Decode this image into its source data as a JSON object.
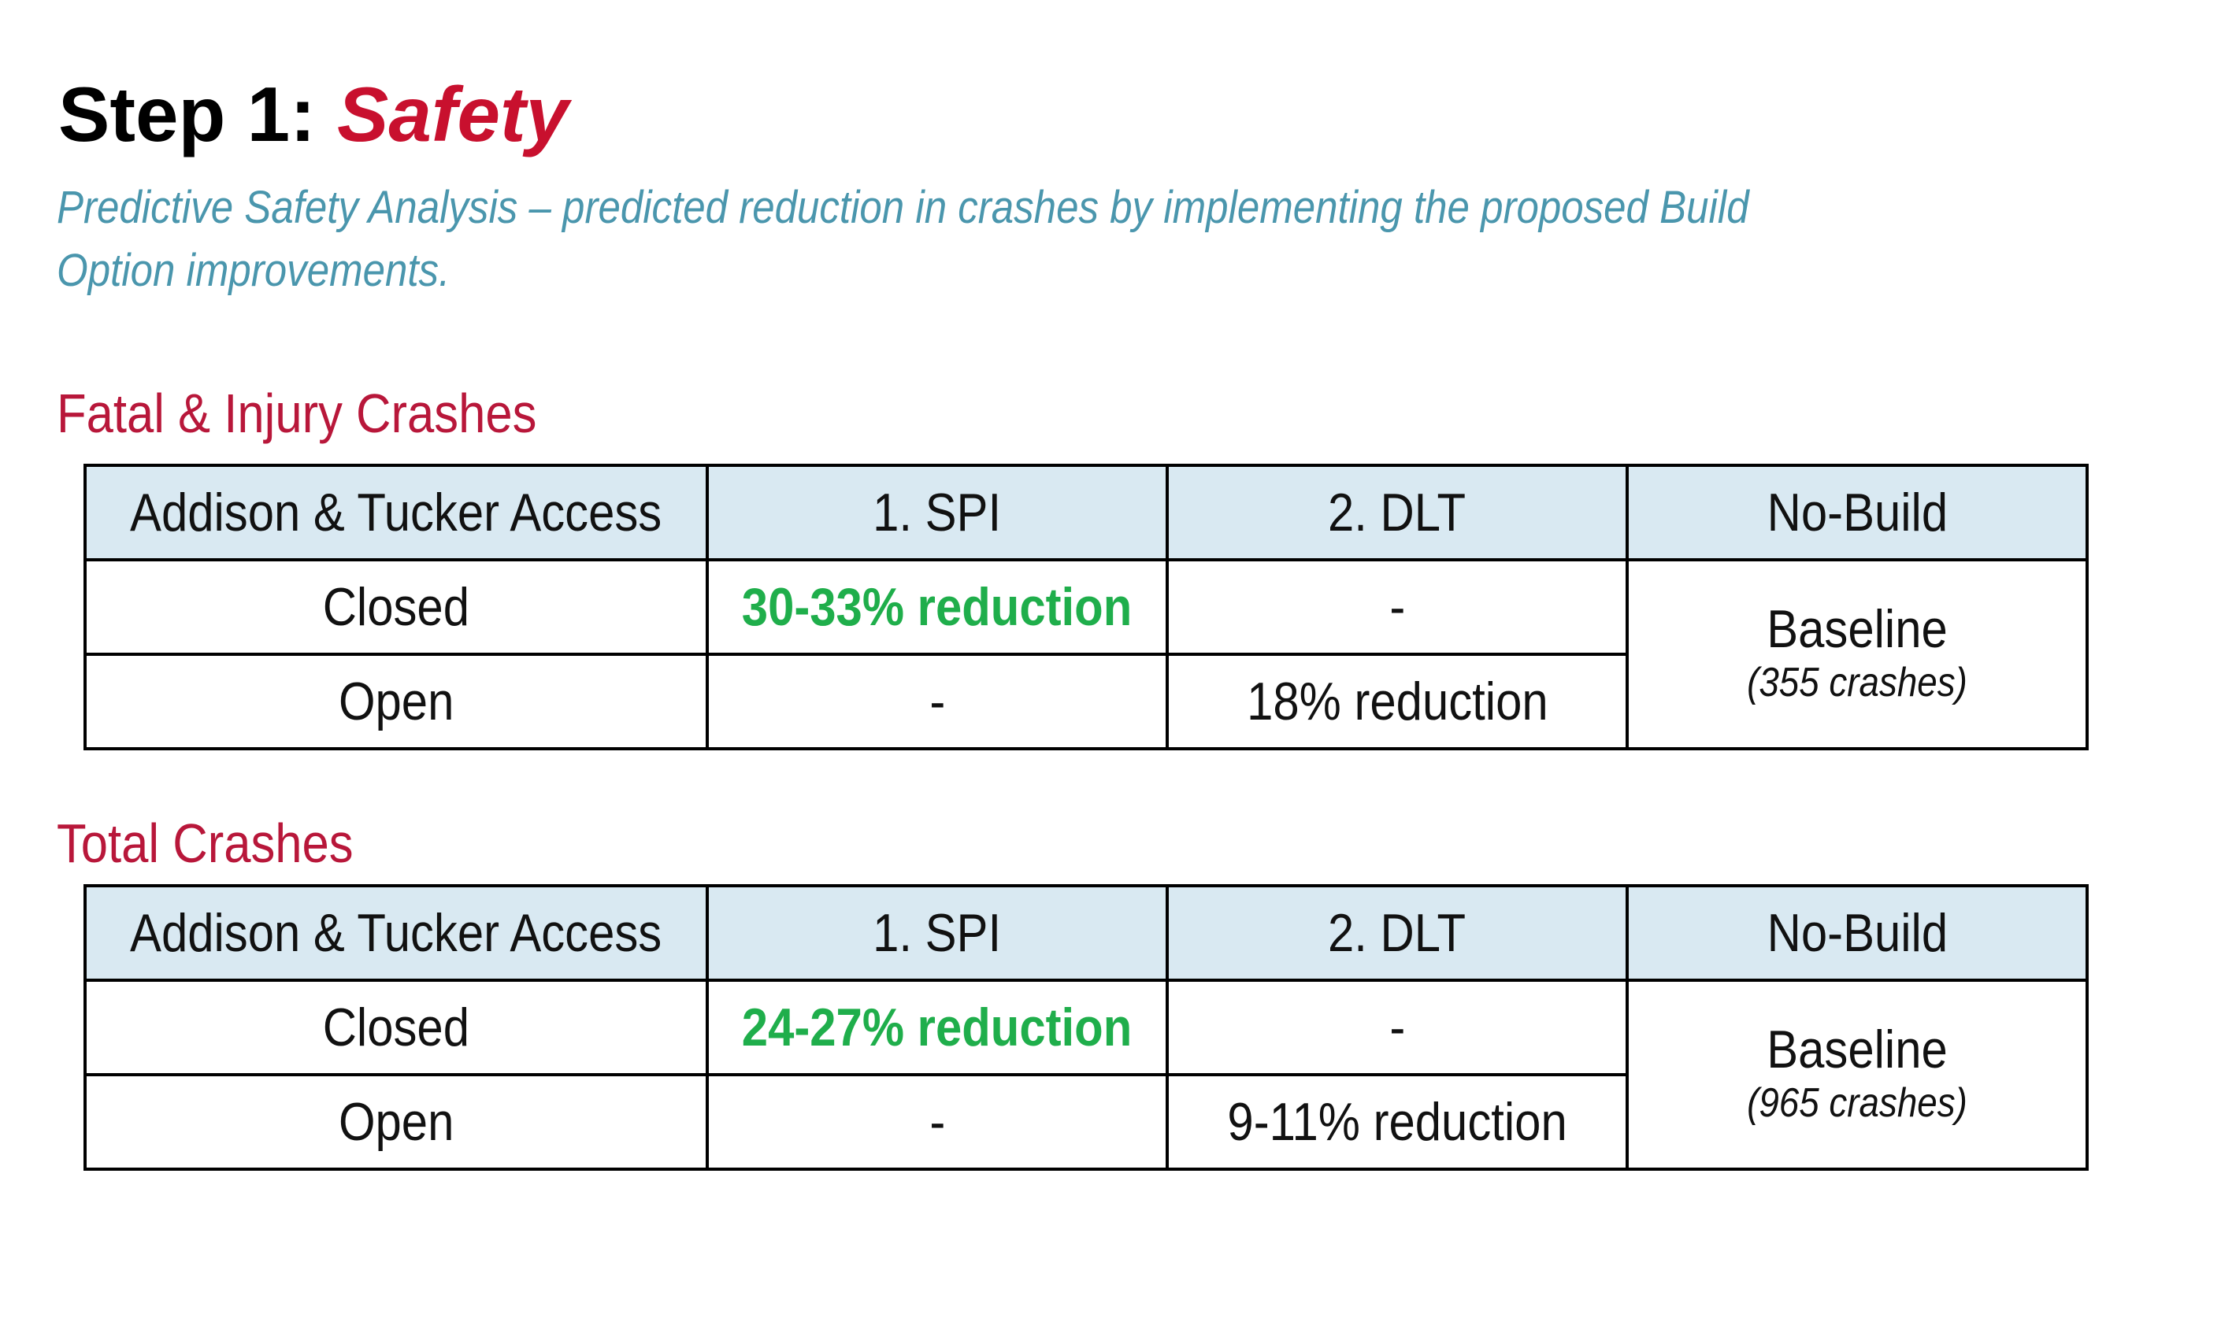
{
  "title": {
    "prefix": "Step 1:",
    "accent": "Safety"
  },
  "subtitle": "Predictive Safety Analysis – predicted reduction in crashes by implementing the proposed Build Option improvements.",
  "colors": {
    "title_accent": "#c8102e",
    "subtitle": "#4a96ad",
    "section_heading": "#b8173a",
    "header_fill": "#d9e9f2",
    "highlight": "#1fae4b"
  },
  "tables": [
    {
      "heading": "Fatal & Injury Crashes",
      "columns": [
        "Addison & Tucker Access",
        "1. SPI",
        "2. DLT",
        "No-Build"
      ],
      "rows": [
        {
          "access": "Closed",
          "spi": "30-33% reduction",
          "dlt": "-"
        },
        {
          "access": "Open",
          "spi": "-",
          "dlt": "18% reduction"
        }
      ],
      "no_build": {
        "label": "Baseline",
        "note": "(355 crashes)"
      }
    },
    {
      "heading": "Total Crashes",
      "columns": [
        "Addison & Tucker Access",
        "1. SPI",
        "2. DLT",
        "No-Build"
      ],
      "rows": [
        {
          "access": "Closed",
          "spi": "24-27% reduction",
          "dlt": "-"
        },
        {
          "access": "Open",
          "spi": "-",
          "dlt": "9-11% reduction"
        }
      ],
      "no_build": {
        "label": "Baseline",
        "note": "(965 crashes)"
      }
    }
  ]
}
